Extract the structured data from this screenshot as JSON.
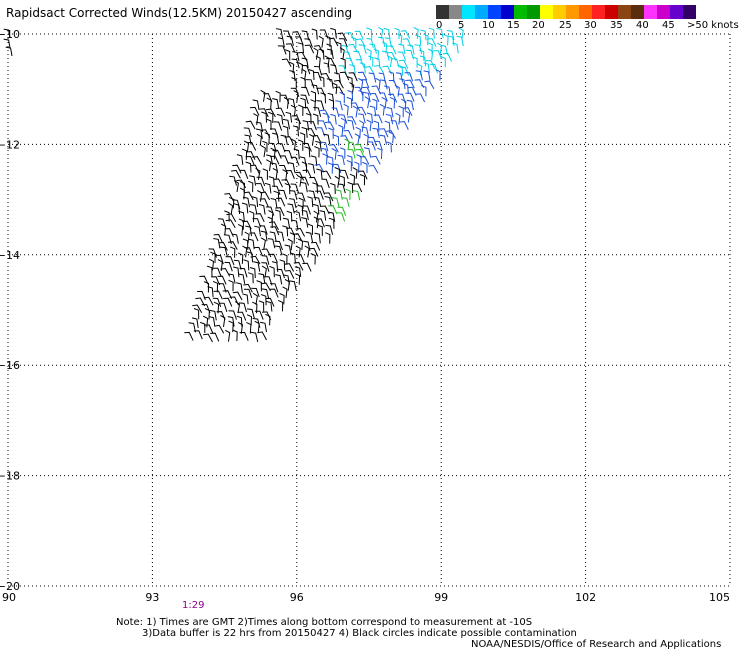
{
  "title": "Rapidsact Corrected Winds(12.5KM) 20150427 ascending",
  "color_scale": {
    "colors": [
      "#333333",
      "#888888",
      "#00e6ff",
      "#00aaff",
      "#0044ff",
      "#0000cc",
      "#00bb00",
      "#009900",
      "#ffff00",
      "#ffcc00",
      "#ff9900",
      "#ff6600",
      "#ff2222",
      "#cc0000",
      "#8b4513",
      "#5a2d0c",
      "#ff33ff",
      "#cc00cc",
      "#6600cc",
      "#330066"
    ],
    "labels": [
      "0",
      "5",
      "10",
      "15",
      "20",
      "25",
      "30",
      "35",
      "40",
      "45",
      ">50 knots"
    ]
  },
  "map": {
    "lon_ticks": [
      "90",
      "93",
      "96",
      "99",
      "102",
      "105"
    ],
    "lat_ticks": [
      "-10",
      "-12",
      "-14",
      "-16",
      "-18",
      "-20"
    ],
    "lon_range": [
      90,
      105
    ],
    "lat_range": [
      -20,
      -10
    ],
    "grid": "dotted"
  },
  "time_label": "1:29",
  "notes": {
    "line1": "Note: 1) Times are GMT 2)Times along bottom correspond to measurement at -10S",
    "line2": "3)Data buffer is 22 hrs from 20150427 4) Black circles indicate possible contamination",
    "credit": "NOAA/NESDIS/Office of Research and Applications"
  },
  "wind_barb_colors": {
    "light": "#000000",
    "cyan": "#00d0e8",
    "blue": "#1a4fd8",
    "green": "#22bb22"
  }
}
